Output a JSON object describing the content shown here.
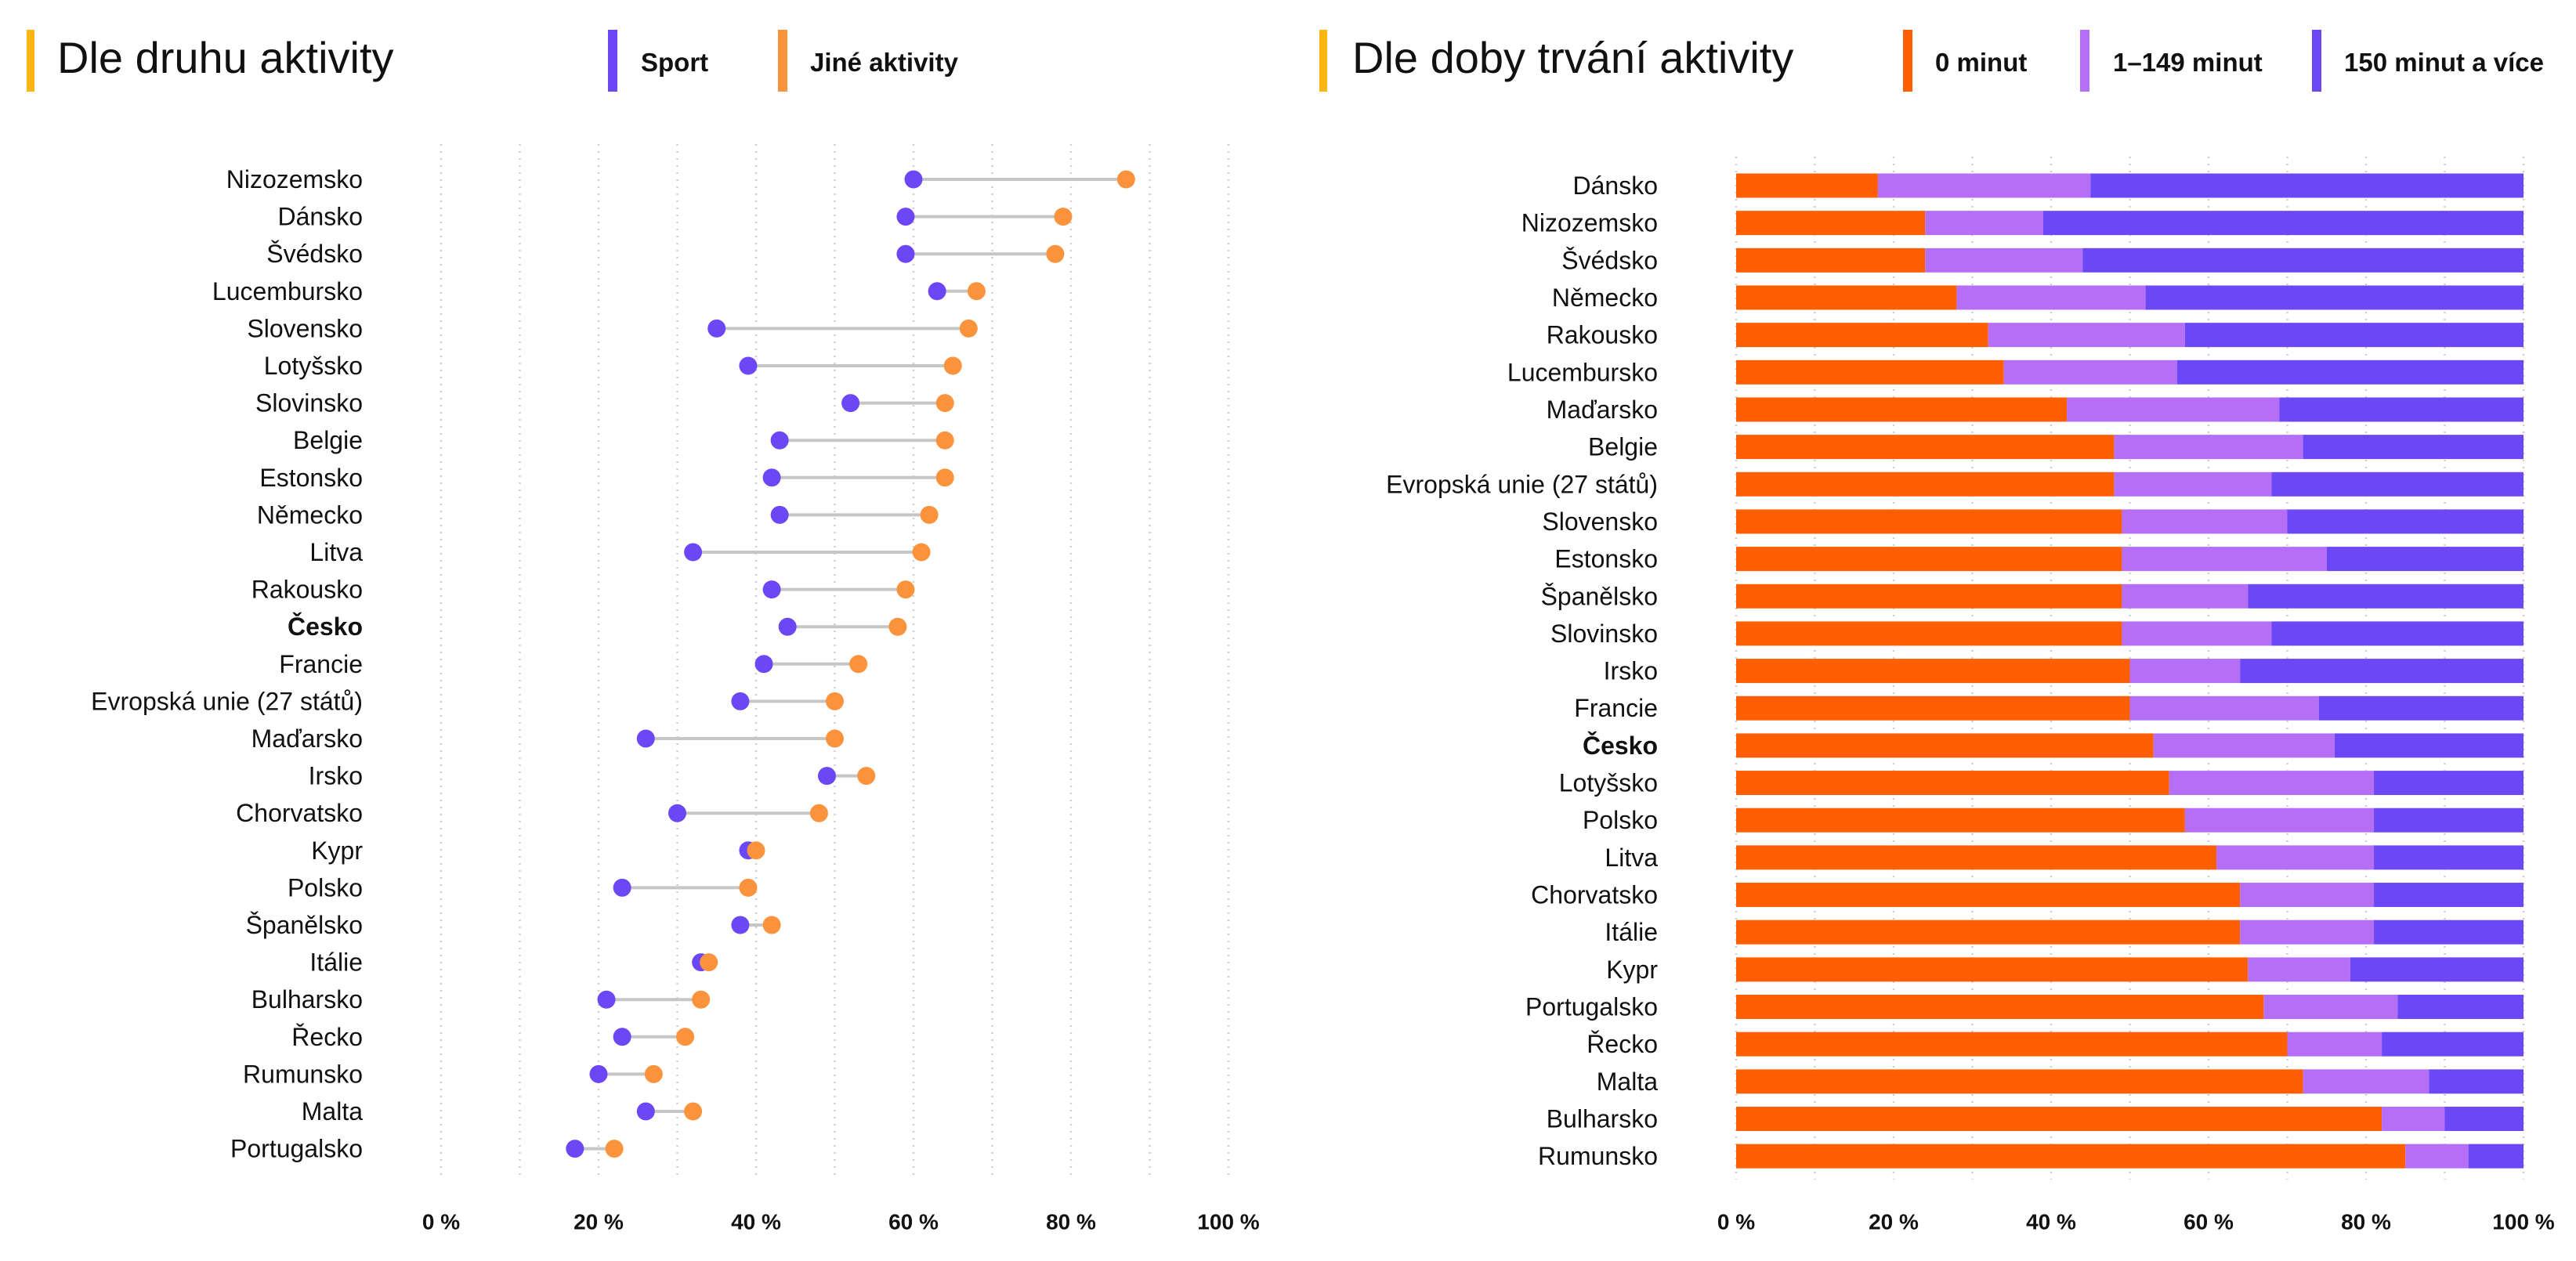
{
  "accent_color": "#fbb614",
  "chart_data": [
    {
      "type": "scatter",
      "orientation": "horizontal",
      "connected_pairs": true,
      "title": "Dle druhu aktivity",
      "legend": "top",
      "grid": true,
      "xlim": [
        0,
        100
      ],
      "x_ticks": [
        0,
        20,
        40,
        60,
        80,
        100
      ],
      "x_tick_labels": [
        "0 %",
        "20 %",
        "40 %",
        "60 %",
        "80 %",
        "100 %"
      ],
      "highlight": "Česko",
      "categories": [
        "Nizozemsko",
        "Dánsko",
        "Švédsko",
        "Lucembursko",
        "Slovensko",
        "Lotyšsko",
        "Slovinsko",
        "Belgie",
        "Estonsko",
        "Německo",
        "Litva",
        "Rakousko",
        "Česko",
        "Francie",
        "Evropská unie (27 států)",
        "Maďarsko",
        "Irsko",
        "Chorvatsko",
        "Kypr",
        "Polsko",
        "Španělsko",
        "Itálie",
        "Bulharsko",
        "Řecko",
        "Rumunsko",
        "Malta",
        "Portugalsko"
      ],
      "series": [
        {
          "name": "Sport",
          "color": "#6c47f5",
          "values": [
            60,
            59,
            59,
            63,
            35,
            39,
            52,
            43,
            42,
            43,
            32,
            42,
            44,
            41,
            38,
            26,
            49,
            30,
            39,
            23,
            38,
            33,
            21,
            23,
            20,
            26,
            17
          ]
        },
        {
          "name": "Jiné aktivity",
          "color": "#fb923c",
          "values": [
            87,
            79,
            78,
            68,
            67,
            65,
            64,
            64,
            64,
            62,
            61,
            59,
            58,
            53,
            50,
            50,
            54,
            48,
            40,
            39,
            42,
            34,
            33,
            31,
            27,
            32,
            22
          ]
        }
      ]
    },
    {
      "type": "bar",
      "orientation": "horizontal",
      "stacked": true,
      "title": "Dle doby trvání aktivity",
      "legend": "top",
      "grid": true,
      "xlim": [
        0,
        100
      ],
      "x_ticks": [
        0,
        20,
        40,
        60,
        80,
        100
      ],
      "x_tick_labels": [
        "0 %",
        "20 %",
        "40 %",
        "60 %",
        "80 %",
        "100 %"
      ],
      "highlight": "Česko",
      "categories": [
        "Dánsko",
        "Nizozemsko",
        "Švédsko",
        "Německo",
        "Rakousko",
        "Lucembursko",
        "Maďarsko",
        "Belgie",
        "Evropská unie (27 států)",
        "Slovensko",
        "Estonsko",
        "Španělsko",
        "Slovinsko",
        "Irsko",
        "Francie",
        "Česko",
        "Lotyšsko",
        "Polsko",
        "Litva",
        "Chorvatsko",
        "Itálie",
        "Kypr",
        "Portugalsko",
        "Řecko",
        "Malta",
        "Bulharsko",
        "Rumunsko"
      ],
      "series": [
        {
          "name": "0 minut",
          "color": "#ff5f00",
          "values": [
            18,
            24,
            24,
            28,
            32,
            34,
            42,
            48,
            48,
            49,
            49,
            49,
            49,
            50,
            50,
            53,
            55,
            57,
            61,
            64,
            64,
            65,
            67,
            70,
            72,
            82,
            85
          ]
        },
        {
          "name": "1–149 minut",
          "color": "#b56ff6",
          "values": [
            27,
            15,
            20,
            24,
            25,
            22,
            27,
            24,
            20,
            21,
            26,
            16,
            19,
            14,
            24,
            23,
            26,
            24,
            20,
            17,
            17,
            13,
            17,
            12,
            16,
            8,
            8
          ]
        },
        {
          "name": "150 minut a více",
          "color": "#6c47f5",
          "values": [
            55,
            61,
            56,
            48,
            43,
            44,
            31,
            28,
            32,
            30,
            25,
            35,
            32,
            36,
            26,
            24,
            19,
            19,
            19,
            19,
            19,
            22,
            16,
            18,
            12,
            10,
            7
          ]
        }
      ]
    }
  ]
}
